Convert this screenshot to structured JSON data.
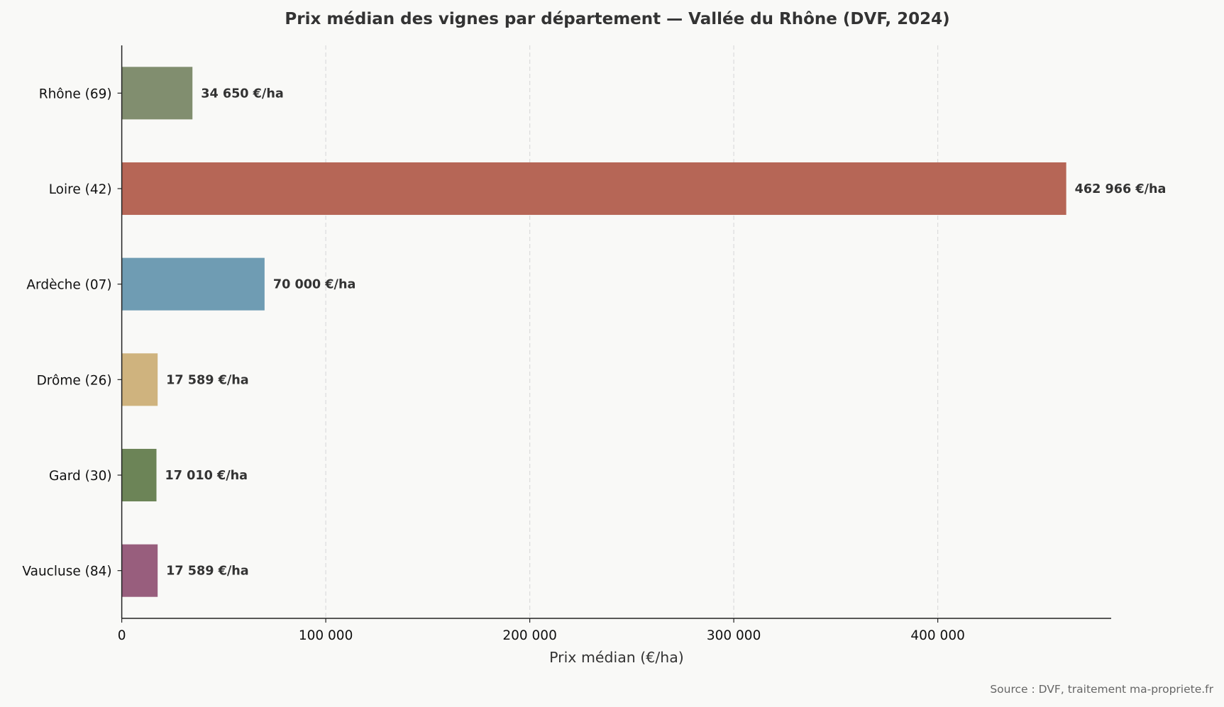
{
  "chart_data": {
    "type": "bar",
    "orientation": "horizontal",
    "title": "Prix médian des vignes par département — Vallée du Rhône (DVF, 2024)",
    "xlabel": "Prix médian (€/ha)",
    "ylabel": "",
    "xlim": [
      0,
      485000
    ],
    "xticks": [
      0,
      100000,
      200000,
      300000,
      400000
    ],
    "xtick_labels": [
      "0",
      "100 000",
      "200 000",
      "300 000",
      "400 000"
    ],
    "grid": "vertical dashed",
    "categories": [
      "Rhône (69)",
      "Loire (42)",
      "Ardèche (07)",
      "Drôme (26)",
      "Gard (30)",
      "Vaucluse (84)"
    ],
    "values": [
      34650,
      462966,
      70000,
      17589,
      17010,
      17589
    ],
    "value_labels": [
      "34 650 €/ha",
      "462 966 €/ha",
      "70 000 €/ha",
      "17 589 €/ha",
      "17 010 €/ha",
      "17 589 €/ha"
    ],
    "colors": [
      "#818e6f",
      "#b66656",
      "#6f9cb3",
      "#cfb37e",
      "#6c8457",
      "#985e7d"
    ],
    "source": "Source : DVF, traitement ma-propriete.fr"
  }
}
